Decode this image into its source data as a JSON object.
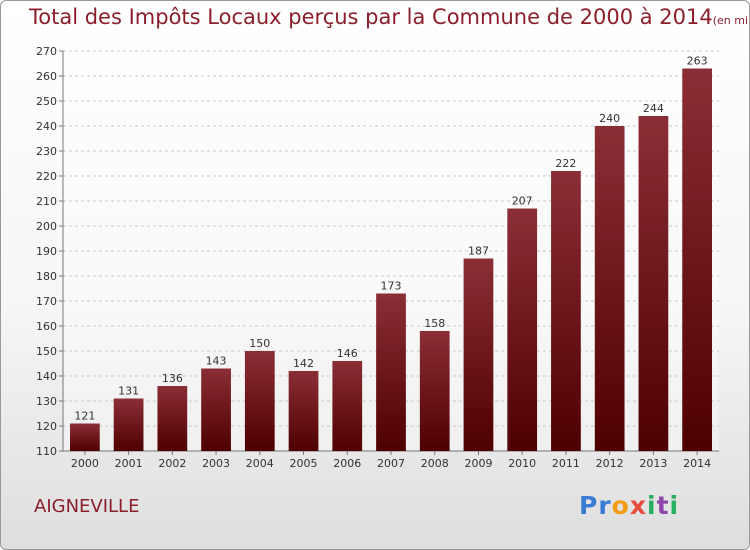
{
  "header": {
    "title": "Total des Impôts Locaux perçus par la Commune de 2000 à 2014",
    "unit": "(en milliers d'€)"
  },
  "commune": "AIGNEVILLE",
  "logo": {
    "letters": [
      {
        "ch": "P",
        "color": "#3a7bd5"
      },
      {
        "ch": "r",
        "color": "#3a7bd5"
      },
      {
        "ch": "o",
        "color": "#f39c12"
      },
      {
        "ch": "x",
        "color": "#e74c3c"
      },
      {
        "ch": "i",
        "color": "#27ae60"
      },
      {
        "ch": "t",
        "color": "#8e44ad"
      },
      {
        "ch": "i",
        "color": "#27ae60"
      }
    ]
  },
  "chart_data": {
    "type": "bar",
    "title": "Total des Impôts Locaux perçus par la Commune de 2000 à 2014",
    "subtitle": "(en milliers d'€)",
    "categories": [
      "2000",
      "2001",
      "2002",
      "2003",
      "2004",
      "2005",
      "2006",
      "2007",
      "2008",
      "2009",
      "2010",
      "2011",
      "2012",
      "2013",
      "2014"
    ],
    "values": [
      121,
      131,
      136,
      143,
      150,
      142,
      146,
      173,
      158,
      187,
      207,
      222,
      240,
      244,
      263
    ],
    "ylim": [
      110,
      270
    ],
    "yticks": [
      110,
      120,
      130,
      140,
      150,
      160,
      170,
      180,
      190,
      200,
      210,
      220,
      230,
      240,
      250,
      260,
      270
    ],
    "grid": true,
    "bar_color_top": "#8b2e35",
    "bar_color_bottom": "#4e0000"
  }
}
